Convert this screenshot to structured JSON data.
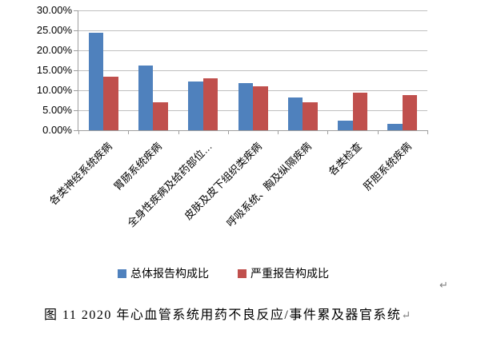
{
  "chart_data": {
    "type": "bar",
    "title": "",
    "xlabel": "",
    "ylabel": "",
    "categories": [
      "各类神经系统疾病",
      "胃肠系统疾病",
      "全身性疾病及给药部位…",
      "皮肤及皮下组织类疾病",
      "呼吸系统、胸及纵隔疾病",
      "各类检查",
      "肝胆系统疾病"
    ],
    "series": [
      {
        "name": "总体报告构成比",
        "color": "#4F81BD",
        "values": [
          24.4,
          16.3,
          12.2,
          11.9,
          8.2,
          2.4,
          1.7
        ]
      },
      {
        "name": "严重报告构成比",
        "color": "#C0504D",
        "values": [
          13.5,
          7.1,
          13.0,
          11.1,
          7.1,
          9.5,
          8.9
        ]
      }
    ],
    "ylim": [
      0,
      30
    ],
    "ytick_step": 5,
    "ytick_labels": [
      "30.00%",
      "25.00%",
      "20.00%",
      "15.00%",
      "10.00%",
      "5.00%",
      "0.00%"
    ],
    "grid": true,
    "legend_position": "bottom",
    "axis_color": "#9e9e9e",
    "gridline_color": "#bfbfbf"
  },
  "caption": {
    "text": "图 11  2020 年心血管系统用药不良反应/事件累及器官系统",
    "return_mark": "↵"
  },
  "stray_return_mark": "↵"
}
